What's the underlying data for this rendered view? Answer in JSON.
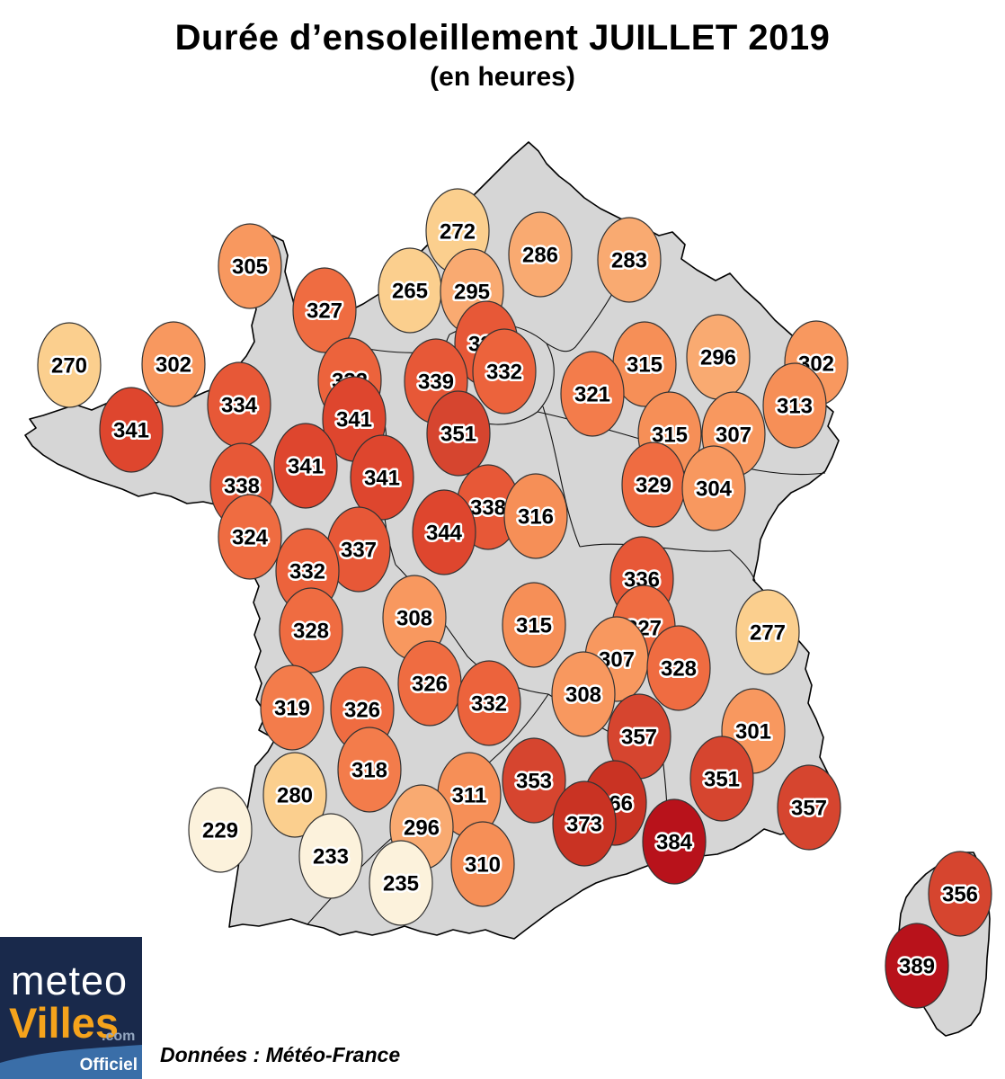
{
  "header": {
    "title": "Durée d’ensoleillement JUILLET 2019",
    "subtitle": "(en heures)"
  },
  "footer": {
    "source": "Données : Météo-France"
  },
  "logo": {
    "meteo": "meteo",
    "villes": "Villes",
    "com": ".com",
    "officiel": "Officiel"
  },
  "colors": {
    "land": "#D6D6D6",
    "outline": "#000000",
    "bubble_stroke": "#333333",
    "label_text": "#000000",
    "label_halo": "#FFFFFF",
    "logo_bg": "#19294B",
    "logo_band": "#3A6EA8",
    "logo_villes": "#F5A31C"
  },
  "chart_data": {
    "type": "scatter",
    "title": "Durée d’ensoleillement JUILLET 2019",
    "subtitle": "(en heures)",
    "unit": "heures",
    "source": "Données : Météo-France",
    "x_range": [
      0,
      1118
    ],
    "y_range": [
      0,
      1200
    ],
    "legend": "none",
    "color_bins": [
      {
        "max": 250,
        "color": "#FCF2DC"
      },
      {
        "max": 282,
        "color": "#FBCF8E"
      },
      {
        "max": 299,
        "color": "#F9AA71"
      },
      {
        "max": 309,
        "color": "#F8985F"
      },
      {
        "max": 317,
        "color": "#F68F57"
      },
      {
        "max": 323,
        "color": "#F37C4B"
      },
      {
        "max": 331,
        "color": "#EF6C41"
      },
      {
        "max": 333,
        "color": "#EC633C"
      },
      {
        "max": 340,
        "color": "#E75837"
      },
      {
        "max": 347,
        "color": "#DE462E"
      },
      {
        "max": 360,
        "color": "#D6452F"
      },
      {
        "max": 376,
        "color": "#C93323"
      },
      {
        "max": 9999,
        "color": "#B8121B"
      }
    ],
    "points": [
      {
        "value": 272,
        "x": 509,
        "y": 257
      },
      {
        "value": 286,
        "x": 601,
        "y": 283
      },
      {
        "value": 283,
        "x": 700,
        "y": 289
      },
      {
        "value": 305,
        "x": 278,
        "y": 296
      },
      {
        "value": 265,
        "x": 456,
        "y": 323
      },
      {
        "value": 295,
        "x": 525,
        "y": 324
      },
      {
        "value": 327,
        "x": 361,
        "y": 345
      },
      {
        "value": 338,
        "x": 541,
        "y": 382
      },
      {
        "value": 296,
        "x": 799,
        "y": 397
      },
      {
        "value": 302,
        "x": 908,
        "y": 404
      },
      {
        "value": 302,
        "x": 193,
        "y": 405
      },
      {
        "value": 315,
        "x": 717,
        "y": 405
      },
      {
        "value": 270,
        "x": 77,
        "y": 406
      },
      {
        "value": 332,
        "x": 561,
        "y": 413
      },
      {
        "value": 332,
        "x": 389,
        "y": 423
      },
      {
        "value": 339,
        "x": 485,
        "y": 424
      },
      {
        "value": 321,
        "x": 659,
        "y": 438
      },
      {
        "value": 334,
        "x": 266,
        "y": 450
      },
      {
        "value": 313,
        "x": 884,
        "y": 451
      },
      {
        "value": 341,
        "x": 394,
        "y": 466
      },
      {
        "value": 341,
        "x": 146,
        "y": 478
      },
      {
        "value": 351,
        "x": 510,
        "y": 482
      },
      {
        "value": 315,
        "x": 745,
        "y": 483
      },
      {
        "value": 307,
        "x": 816,
        "y": 483
      },
      {
        "value": 341,
        "x": 340,
        "y": 518
      },
      {
        "value": 341,
        "x": 425,
        "y": 531
      },
      {
        "value": 329,
        "x": 727,
        "y": 539
      },
      {
        "value": 338,
        "x": 269,
        "y": 540
      },
      {
        "value": 304,
        "x": 794,
        "y": 543
      },
      {
        "value": 338,
        "x": 543,
        "y": 564
      },
      {
        "value": 316,
        "x": 596,
        "y": 574
      },
      {
        "value": 344,
        "x": 494,
        "y": 592
      },
      {
        "value": 324,
        "x": 278,
        "y": 597
      },
      {
        "value": 337,
        "x": 399,
        "y": 611
      },
      {
        "value": 332,
        "x": 342,
        "y": 635
      },
      {
        "value": 336,
        "x": 714,
        "y": 644
      },
      {
        "value": 308,
        "x": 461,
        "y": 687
      },
      {
        "value": 315,
        "x": 594,
        "y": 695
      },
      {
        "value": 327,
        "x": 716,
        "y": 698
      },
      {
        "value": 328,
        "x": 346,
        "y": 701
      },
      {
        "value": 277,
        "x": 854,
        "y": 703
      },
      {
        "value": 307,
        "x": 686,
        "y": 733
      },
      {
        "value": 328,
        "x": 755,
        "y": 743
      },
      {
        "value": 326,
        "x": 478,
        "y": 760
      },
      {
        "value": 308,
        "x": 649,
        "y": 772
      },
      {
        "value": 332,
        "x": 544,
        "y": 782
      },
      {
        "value": 319,
        "x": 325,
        "y": 787
      },
      {
        "value": 326,
        "x": 403,
        "y": 789
      },
      {
        "value": 301,
        "x": 838,
        "y": 813
      },
      {
        "value": 357,
        "x": 711,
        "y": 819
      },
      {
        "value": 318,
        "x": 411,
        "y": 856
      },
      {
        "value": 351,
        "x": 803,
        "y": 866
      },
      {
        "value": 353,
        "x": 594,
        "y": 868
      },
      {
        "value": 280,
        "x": 328,
        "y": 884
      },
      {
        "value": 311,
        "x": 522,
        "y": 884
      },
      {
        "value": 366,
        "x": 684,
        "y": 893
      },
      {
        "value": 357,
        "x": 900,
        "y": 898
      },
      {
        "value": 373,
        "x": 650,
        "y": 916
      },
      {
        "value": 296,
        "x": 469,
        "y": 920
      },
      {
        "value": 229,
        "x": 245,
        "y": 923
      },
      {
        "value": 384,
        "x": 750,
        "y": 936
      },
      {
        "value": 233,
        "x": 368,
        "y": 952
      },
      {
        "value": 310,
        "x": 537,
        "y": 961
      },
      {
        "value": 235,
        "x": 446,
        "y": 982
      },
      {
        "value": 356,
        "x": 1068,
        "y": 994
      },
      {
        "value": 389,
        "x": 1020,
        "y": 1074
      }
    ]
  }
}
